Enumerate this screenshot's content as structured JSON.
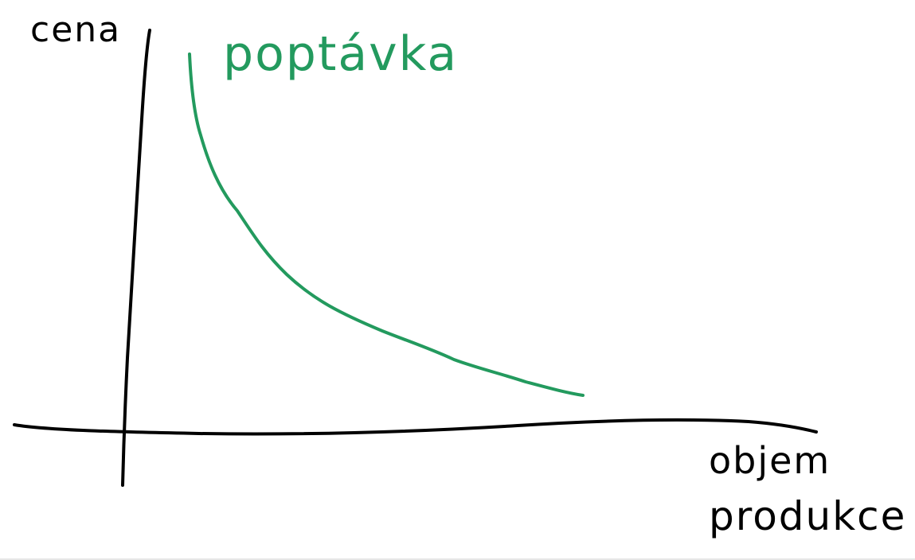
{
  "labels": {
    "y_axis": "cena",
    "x_axis_line1": "objem",
    "x_axis_line2": "produkce",
    "curve": "poptávka"
  },
  "colors": {
    "ink": "#000000",
    "curve": "#239a5e",
    "background": "#ffffff"
  }
}
